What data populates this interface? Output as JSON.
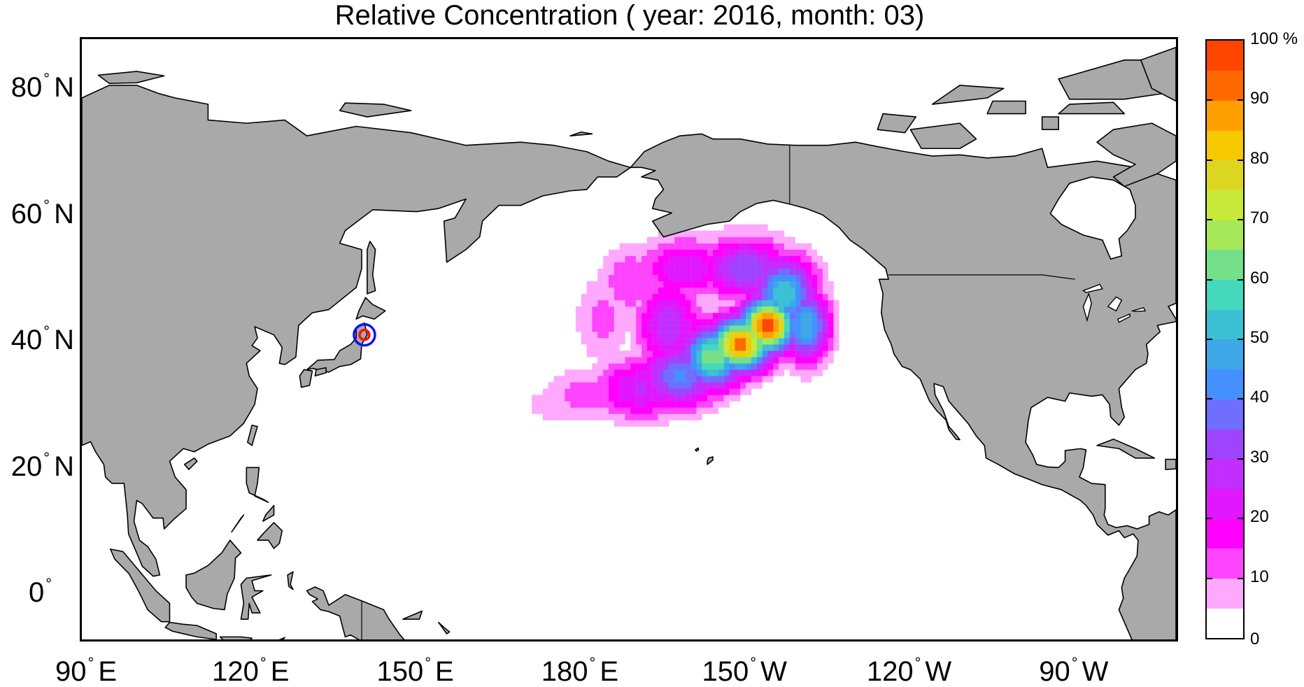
{
  "title": "Relative Concentration ( year: 2016, month: 03)",
  "map": {
    "projection": "equirectangular",
    "land_color": "#A9A9A9",
    "ocean_color": "#FFFFFF",
    "coast_color": "#000000",
    "degree_symbol": "°",
    "lon_ticks": [
      {
        "lon": 90,
        "value": "90",
        "hemi": "E"
      },
      {
        "lon": 120,
        "value": "120",
        "hemi": "E"
      },
      {
        "lon": 150,
        "value": "150",
        "hemi": "E"
      },
      {
        "lon": 180,
        "value": "180",
        "hemi": "E"
      },
      {
        "lon": 210,
        "value": "150",
        "hemi": "W"
      },
      {
        "lon": 240,
        "value": "120",
        "hemi": "W"
      },
      {
        "lon": 270,
        "value": "90",
        "hemi": "W"
      }
    ],
    "lat_ticks": [
      {
        "lat": 80,
        "value": "80",
        "hemi": "N"
      },
      {
        "lat": 60,
        "value": "60",
        "hemi": "N"
      },
      {
        "lat": 40,
        "value": "40",
        "hemi": "N"
      },
      {
        "lat": 20,
        "value": "20",
        "hemi": "N"
      },
      {
        "lat": 0,
        "value": "0",
        "hemi": ""
      }
    ],
    "source_marker": {
      "lon": 141.5,
      "lat": 39.5,
      "outer_color": "#1010FF",
      "inner_color": "#FF1010"
    }
  },
  "colorbar": {
    "labels": [
      "100 %",
      "90",
      "80",
      "70",
      "60",
      "50",
      "40",
      "30",
      "20",
      "10",
      "0"
    ],
    "levels": [
      0,
      5,
      10,
      15,
      20,
      25,
      30,
      35,
      40,
      45,
      50,
      55,
      60,
      65,
      70,
      75,
      80,
      85,
      90,
      95,
      100
    ],
    "colors": [
      "#FFFFFF",
      "#FFA8FF",
      "#FF44FF",
      "#FF00FF",
      "#E018FF",
      "#C22EFF",
      "#9E44FF",
      "#6E6EFF",
      "#4490FF",
      "#3CA8E8",
      "#3CC0D4",
      "#44D8BC",
      "#74E08A",
      "#A6E85A",
      "#C8E83A",
      "#DDD620",
      "#F5C800",
      "#FFA000",
      "#FF6A00",
      "#FF4500"
    ]
  }
}
